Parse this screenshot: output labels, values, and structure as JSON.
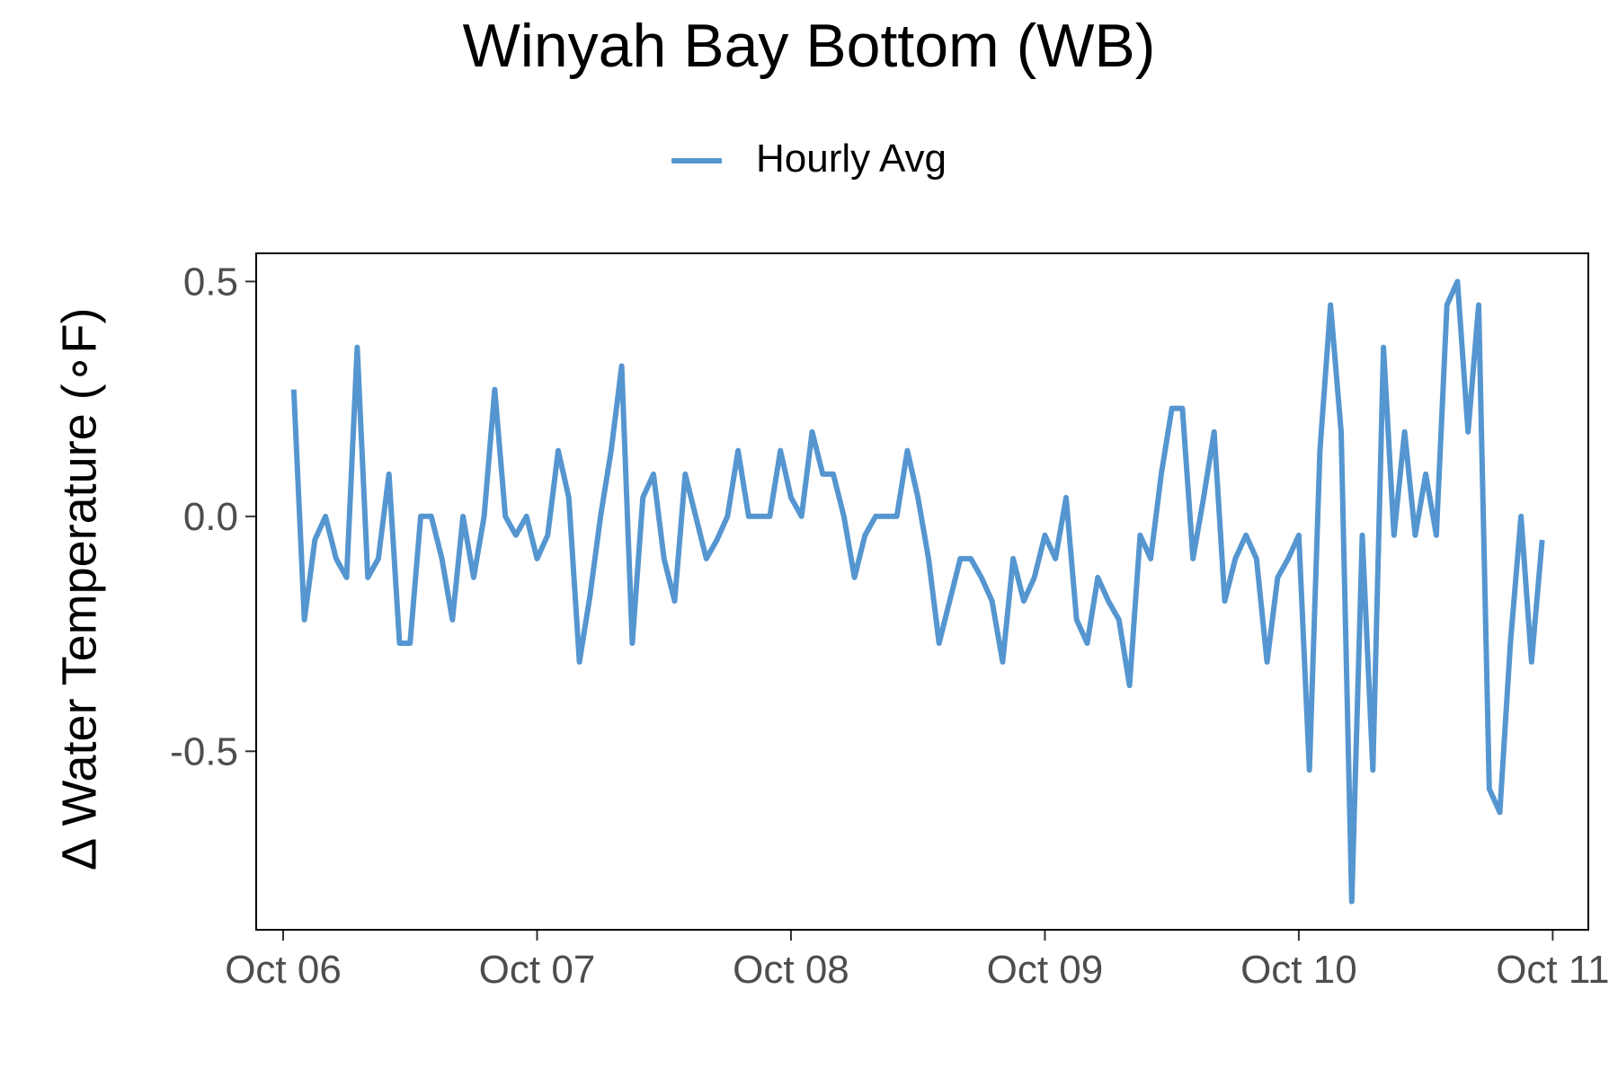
{
  "chart_data": {
    "type": "line",
    "title": "Winyah Bay Bottom (WB)",
    "xlabel": "",
    "ylabel": "∆ Water Temperature (∘F)",
    "legend": {
      "placement": "top",
      "entries": [
        "Hourly Avg"
      ]
    },
    "x_ticks": [
      "Oct 06",
      "Oct 07",
      "Oct 08",
      "Oct 09",
      "Oct 10",
      "Oct 11"
    ],
    "y_ticks": [
      "0.5",
      "0.0",
      "-0.5"
    ],
    "xlim": [
      "2023-10-05 21:27",
      "2023-10-11 03:22"
    ],
    "ylim": [
      -0.88,
      0.56
    ],
    "grid": false,
    "colors": {
      "series": "#5596d0",
      "frame": "#000000",
      "tick_text": "#4d4d4d"
    },
    "series": [
      {
        "name": "Hourly Avg",
        "x": [
          "2023-10-06 01:00",
          "2023-10-06 02:00",
          "2023-10-06 03:00",
          "2023-10-06 04:00",
          "2023-10-06 05:00",
          "2023-10-06 06:00",
          "2023-10-06 07:00",
          "2023-10-06 08:00",
          "2023-10-06 09:00",
          "2023-10-06 10:00",
          "2023-10-06 11:00",
          "2023-10-06 12:00",
          "2023-10-06 13:00",
          "2023-10-06 14:00",
          "2023-10-06 15:00",
          "2023-10-06 16:00",
          "2023-10-06 17:00",
          "2023-10-06 18:00",
          "2023-10-06 19:00",
          "2023-10-06 20:00",
          "2023-10-06 21:00",
          "2023-10-06 22:00",
          "2023-10-06 23:00",
          "2023-10-07 00:00",
          "2023-10-07 01:00",
          "2023-10-07 02:00",
          "2023-10-07 03:00",
          "2023-10-07 04:00",
          "2023-10-07 05:00",
          "2023-10-07 06:00",
          "2023-10-07 07:00",
          "2023-10-07 08:00",
          "2023-10-07 09:00",
          "2023-10-07 10:00",
          "2023-10-07 11:00",
          "2023-10-07 12:00",
          "2023-10-07 13:00",
          "2023-10-07 14:00",
          "2023-10-07 15:00",
          "2023-10-07 16:00",
          "2023-10-07 17:00",
          "2023-10-07 18:00",
          "2023-10-07 19:00",
          "2023-10-07 20:00",
          "2023-10-07 21:00",
          "2023-10-07 22:00",
          "2023-10-07 23:00",
          "2023-10-08 00:00",
          "2023-10-08 01:00",
          "2023-10-08 02:00",
          "2023-10-08 03:00",
          "2023-10-08 04:00",
          "2023-10-08 05:00",
          "2023-10-08 06:00",
          "2023-10-08 07:00",
          "2023-10-08 08:00",
          "2023-10-08 09:00",
          "2023-10-08 10:00",
          "2023-10-08 11:00",
          "2023-10-08 12:00",
          "2023-10-08 13:00",
          "2023-10-08 14:00",
          "2023-10-08 15:00",
          "2023-10-08 16:00",
          "2023-10-08 17:00",
          "2023-10-08 18:00",
          "2023-10-08 19:00",
          "2023-10-08 20:00",
          "2023-10-08 21:00",
          "2023-10-08 22:00",
          "2023-10-08 23:00",
          "2023-10-09 00:00",
          "2023-10-09 01:00",
          "2023-10-09 02:00",
          "2023-10-09 03:00",
          "2023-10-09 04:00",
          "2023-10-09 05:00",
          "2023-10-09 06:00",
          "2023-10-09 07:00",
          "2023-10-09 08:00",
          "2023-10-09 09:00",
          "2023-10-09 10:00",
          "2023-10-09 11:00",
          "2023-10-09 12:00",
          "2023-10-09 13:00",
          "2023-10-09 14:00",
          "2023-10-09 15:00",
          "2023-10-09 16:00",
          "2023-10-09 17:00",
          "2023-10-09 18:00",
          "2023-10-09 19:00",
          "2023-10-09 20:00",
          "2023-10-09 21:00",
          "2023-10-09 22:00",
          "2023-10-09 23:00",
          "2023-10-10 00:00",
          "2023-10-10 01:00",
          "2023-10-10 02:00",
          "2023-10-10 03:00",
          "2023-10-10 04:00",
          "2023-10-10 05:00",
          "2023-10-10 06:00",
          "2023-10-10 07:00",
          "2023-10-10 08:00",
          "2023-10-10 09:00",
          "2023-10-10 10:00",
          "2023-10-10 11:00",
          "2023-10-10 12:00",
          "2023-10-10 13:00",
          "2023-10-10 14:00",
          "2023-10-10 15:00",
          "2023-10-10 16:00",
          "2023-10-10 17:00",
          "2023-10-10 18:00",
          "2023-10-10 19:00",
          "2023-10-10 20:00",
          "2023-10-10 21:00",
          "2023-10-10 22:00",
          "2023-10-10 23:00"
        ],
        "y": [
          0.27,
          -0.22,
          -0.05,
          0.0,
          -0.09,
          -0.13,
          0.36,
          -0.13,
          -0.09,
          0.09,
          -0.27,
          -0.27,
          0.0,
          0.0,
          -0.09,
          -0.22,
          0.0,
          -0.13,
          0.0,
          0.27,
          0.0,
          -0.04,
          0.0,
          -0.09,
          -0.04,
          0.14,
          0.04,
          -0.31,
          -0.17,
          0.0,
          0.14,
          0.32,
          -0.27,
          0.04,
          0.09,
          -0.09,
          -0.18,
          0.09,
          0.0,
          -0.09,
          -0.05,
          0.0,
          0.14,
          0.0,
          0.0,
          0.0,
          0.14,
          0.04,
          0.0,
          0.18,
          0.09,
          0.09,
          0.0,
          -0.13,
          -0.04,
          0.0,
          0.0,
          0.0,
          0.14,
          0.04,
          -0.09,
          -0.27,
          -0.18,
          -0.09,
          -0.09,
          -0.13,
          -0.18,
          -0.31,
          -0.09,
          -0.18,
          -0.13,
          -0.04,
          -0.09,
          0.04,
          -0.22,
          -0.27,
          -0.13,
          -0.18,
          -0.22,
          -0.36,
          -0.04,
          -0.09,
          0.09,
          0.23,
          0.23,
          -0.09,
          0.04,
          0.18,
          -0.18,
          -0.09,
          -0.04,
          -0.09,
          -0.31,
          -0.13,
          -0.09,
          -0.04,
          -0.54,
          0.14,
          0.45,
          0.18,
          -0.82,
          -0.04,
          -0.54,
          0.36,
          -0.04,
          0.18,
          -0.04,
          0.09,
          -0.04,
          0.45,
          0.5,
          0.18,
          0.45,
          -0.58,
          -0.63,
          -0.27,
          0.0,
          -0.31,
          -0.05
        ]
      }
    ]
  }
}
